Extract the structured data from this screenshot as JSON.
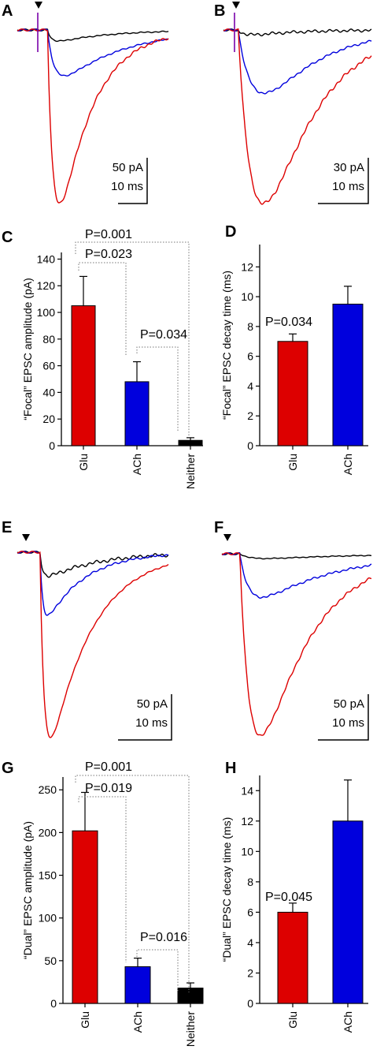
{
  "chart_data": [
    {
      "panel": "A",
      "type": "line",
      "title": "",
      "series": [
        {
          "color": "#000000"
        },
        {
          "color": "#0000dd"
        },
        {
          "color": "#dd0000"
        }
      ],
      "scale_bar": {
        "y_label": "50 pA",
        "x_label": "10 ms"
      },
      "stimulus_marker": "triangle-down"
    },
    {
      "panel": "B",
      "type": "line",
      "series": [
        {
          "color": "#000000"
        },
        {
          "color": "#0000dd"
        },
        {
          "color": "#dd0000"
        }
      ],
      "scale_bar": {
        "y_label": "30 pA",
        "x_label": "10 ms"
      },
      "stimulus_marker": "triangle-down"
    },
    {
      "panel": "C",
      "type": "bar",
      "ylabel": "“Focal” EPSC amplitude (pA)",
      "ylim": [
        0,
        145
      ],
      "yticks": [
        0,
        20,
        40,
        60,
        80,
        100,
        120,
        140
      ],
      "categories": [
        "Glu",
        "ACh",
        "Neither"
      ],
      "values": [
        105,
        48,
        4
      ],
      "errors": [
        22,
        15,
        2
      ],
      "colors": [
        "#dd0000",
        "#0000dd",
        "#000000"
      ],
      "annotations": [
        {
          "text": "P=0.001",
          "from": 0,
          "to": 2
        },
        {
          "text": "P=0.023",
          "from": 0,
          "to": 1
        },
        {
          "text": "P=0.034",
          "from": 1,
          "to": 2
        }
      ]
    },
    {
      "panel": "D",
      "type": "bar",
      "ylabel": "“Focal” EPSC decay time (ms)",
      "ylim": [
        0,
        13.5
      ],
      "yticks": [
        0,
        2,
        4,
        6,
        8,
        10,
        12
      ],
      "categories": [
        "Glu",
        "ACh"
      ],
      "values": [
        7.0,
        9.5
      ],
      "errors": [
        0.5,
        1.2
      ],
      "colors": [
        "#dd0000",
        "#0000dd"
      ],
      "annotations": [
        {
          "text": "P=0.034"
        }
      ]
    },
    {
      "panel": "E",
      "type": "line",
      "series": [
        {
          "color": "#000000"
        },
        {
          "color": "#0000dd"
        },
        {
          "color": "#dd0000"
        }
      ],
      "scale_bar": {
        "y_label": "50 pA",
        "x_label": "10 ms"
      },
      "stimulus_marker": "triangle-down"
    },
    {
      "panel": "F",
      "type": "line",
      "series": [
        {
          "color": "#000000"
        },
        {
          "color": "#0000dd"
        },
        {
          "color": "#dd0000"
        }
      ],
      "scale_bar": {
        "y_label": "50 pA",
        "x_label": "10 ms"
      },
      "stimulus_marker": "triangle-down"
    },
    {
      "panel": "G",
      "type": "bar",
      "ylabel": "“Dual” EPSC amplitude (pA)",
      "ylim": [
        0,
        265
      ],
      "yticks": [
        0,
        50,
        100,
        150,
        200,
        250
      ],
      "categories": [
        "Glu",
        "ACh",
        "Neither"
      ],
      "values": [
        202,
        43,
        18
      ],
      "errors": [
        45,
        10,
        6
      ],
      "colors": [
        "#dd0000",
        "#0000dd",
        "#000000"
      ],
      "annotations": [
        {
          "text": "P=0.001",
          "from": 0,
          "to": 2
        },
        {
          "text": "P=0.019",
          "from": 0,
          "to": 1
        },
        {
          "text": "P=0.016",
          "from": 1,
          "to": 2
        }
      ]
    },
    {
      "panel": "H",
      "type": "bar",
      "ylabel": "“Dual” EPSC decay time (ms)",
      "ylim": [
        0,
        15
      ],
      "yticks": [
        0,
        2,
        4,
        6,
        8,
        10,
        12,
        14
      ],
      "categories": [
        "Glu",
        "ACh"
      ],
      "values": [
        6.0,
        12.0
      ],
      "errors": [
        0.6,
        2.7
      ],
      "colors": [
        "#dd0000",
        "#0000dd"
      ],
      "annotations": [
        {
          "text": "P=0.045"
        }
      ]
    }
  ]
}
